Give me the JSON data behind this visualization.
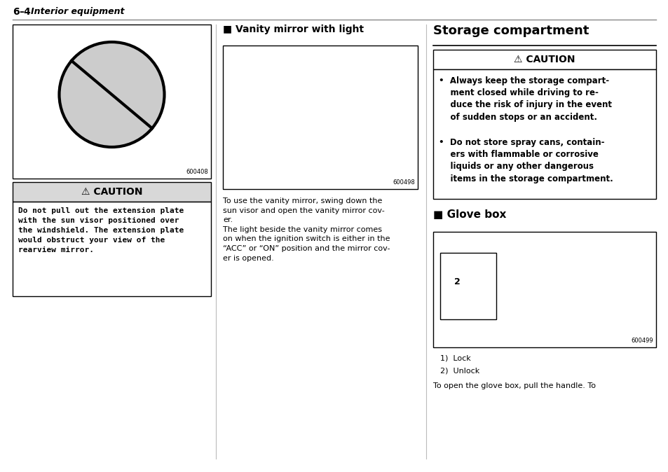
{
  "bg_color": "#ffffff",
  "page_width": 9.54,
  "page_height": 6.74,
  "header": "6–4",
  "header_italic": "Interior equipment",
  "col1_img_code": "600408",
  "col2_section_title": "■ Vanity mirror with light",
  "col2_img_code": "600498",
  "col2_body_line1": "To use the vanity mirror, swing down the",
  "col2_body_line2": "sun visor and open the vanity mirror cov-",
  "col2_body_line3": "er.",
  "col2_body_line4": "The light beside the vanity mirror comes",
  "col2_body_line5": "on when the ignition switch is either in the",
  "col2_body_line6": "“ACC” or “ON” position and the mirror cov-",
  "col2_body_line7": "er is opened.",
  "col3_section_title": "Storage compartment",
  "col3_caution_header": "⚠CAUTION",
  "col3_bullet1": "•  Always keep the storage compart-\n    ment closed while driving to re-\n    duce the risk of injury in the event\n    of sudden stops or an accident.",
  "col3_bullet2": "•  Do not store spray cans, contain-\n    ers with flammable or corrosive\n    liquids or any other dangerous\n    items in the storage compartment.",
  "col3_glove_title": "■ Glove box",
  "col3_img_code": "600499",
  "col3_legend1": "1)  Lock",
  "col3_legend2": "2)  Unlock",
  "col3_body": "To open the glove box, pull the handle. To",
  "caution1_header": "⚠CAUTION",
  "caution1_body": "Do not pull out the extension plate\nwith the sun visor positioned over\nthe windshield. The extension plate\nwould obstruct your view of the\nrearview mirror."
}
